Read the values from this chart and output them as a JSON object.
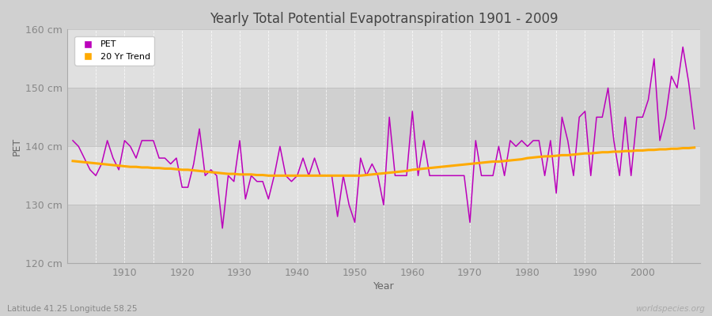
{
  "title": "Yearly Total Potential Evapotranspiration 1901 - 2009",
  "xlabel": "Year",
  "ylabel": "PET",
  "ylim": [
    120,
    160
  ],
  "xlim": [
    1900,
    2010
  ],
  "yticks": [
    120,
    130,
    140,
    150,
    160
  ],
  "ytick_labels": [
    "120 cm",
    "130 cm",
    "140 cm",
    "150 cm",
    "160 cm"
  ],
  "pet_color": "#bb00bb",
  "trend_color": "#ffaa00",
  "outer_bg_color": "#d0d0d0",
  "plot_bg_light": "#e0e0e0",
  "plot_bg_dark": "#d0d0d0",
  "title_color": "#444444",
  "subtitle": "Latitude 41.25 Longitude 58.25",
  "watermark": "worldspecies.org",
  "pet_linewidth": 1.1,
  "trend_linewidth": 2.2,
  "years": [
    1901,
    1902,
    1903,
    1904,
    1905,
    1906,
    1907,
    1908,
    1909,
    1910,
    1911,
    1912,
    1913,
    1914,
    1915,
    1916,
    1917,
    1918,
    1919,
    1920,
    1921,
    1922,
    1923,
    1924,
    1925,
    1926,
    1927,
    1928,
    1929,
    1930,
    1931,
    1932,
    1933,
    1934,
    1935,
    1936,
    1937,
    1938,
    1939,
    1940,
    1941,
    1942,
    1943,
    1944,
    1945,
    1946,
    1947,
    1948,
    1949,
    1950,
    1951,
    1952,
    1953,
    1954,
    1955,
    1956,
    1957,
    1958,
    1959,
    1960,
    1961,
    1962,
    1963,
    1964,
    1965,
    1966,
    1967,
    1968,
    1969,
    1970,
    1971,
    1972,
    1973,
    1974,
    1975,
    1976,
    1977,
    1978,
    1979,
    1980,
    1981,
    1982,
    1983,
    1984,
    1985,
    1986,
    1987,
    1988,
    1989,
    1990,
    1991,
    1992,
    1993,
    1994,
    1995,
    1996,
    1997,
    1998,
    1999,
    2000,
    2001,
    2002,
    2003,
    2004,
    2005,
    2006,
    2007,
    2008,
    2009
  ],
  "pet_values": [
    141,
    140,
    138,
    136,
    135,
    137,
    141,
    138,
    136,
    141,
    140,
    138,
    141,
    141,
    141,
    138,
    138,
    137,
    138,
    133,
    133,
    137,
    143,
    135,
    136,
    135,
    126,
    135,
    134,
    141,
    131,
    135,
    134,
    134,
    131,
    135,
    140,
    135,
    134,
    135,
    138,
    135,
    138,
    135,
    135,
    135,
    128,
    135,
    130,
    127,
    138,
    135,
    137,
    135,
    130,
    145,
    135,
    135,
    135,
    146,
    135,
    141,
    135,
    135,
    135,
    135,
    135,
    135,
    135,
    127,
    141,
    135,
    135,
    135,
    140,
    135,
    141,
    140,
    141,
    140,
    141,
    141,
    135,
    141,
    132,
    145,
    141,
    135,
    145,
    146,
    135,
    145,
    145,
    150,
    141,
    135,
    145,
    135,
    145,
    145,
    148,
    155,
    141,
    145,
    152,
    150,
    157,
    151,
    143
  ],
  "trend_values": [
    137.5,
    137.4,
    137.3,
    137.2,
    137.1,
    137.0,
    136.9,
    136.8,
    136.7,
    136.6,
    136.5,
    136.5,
    136.4,
    136.4,
    136.3,
    136.3,
    136.2,
    136.2,
    136.1,
    136.0,
    136.0,
    135.9,
    135.8,
    135.7,
    135.6,
    135.5,
    135.4,
    135.3,
    135.3,
    135.2,
    135.2,
    135.2,
    135.1,
    135.1,
    135.0,
    135.0,
    135.0,
    135.0,
    135.0,
    135.0,
    135.0,
    135.0,
    135.0,
    135.0,
    135.0,
    135.0,
    135.0,
    135.0,
    135.0,
    135.0,
    135.0,
    135.1,
    135.2,
    135.3,
    135.4,
    135.5,
    135.6,
    135.7,
    135.8,
    136.0,
    136.1,
    136.2,
    136.3,
    136.4,
    136.5,
    136.6,
    136.7,
    136.8,
    136.9,
    137.0,
    137.1,
    137.2,
    137.3,
    137.4,
    137.4,
    137.5,
    137.6,
    137.7,
    137.8,
    138.0,
    138.1,
    138.2,
    138.3,
    138.3,
    138.4,
    138.5,
    138.5,
    138.6,
    138.7,
    138.8,
    138.8,
    138.9,
    139.0,
    139.0,
    139.1,
    139.1,
    139.2,
    139.2,
    139.3,
    139.3,
    139.4,
    139.4,
    139.5,
    139.5,
    139.6,
    139.6,
    139.7,
    139.7,
    139.8
  ]
}
